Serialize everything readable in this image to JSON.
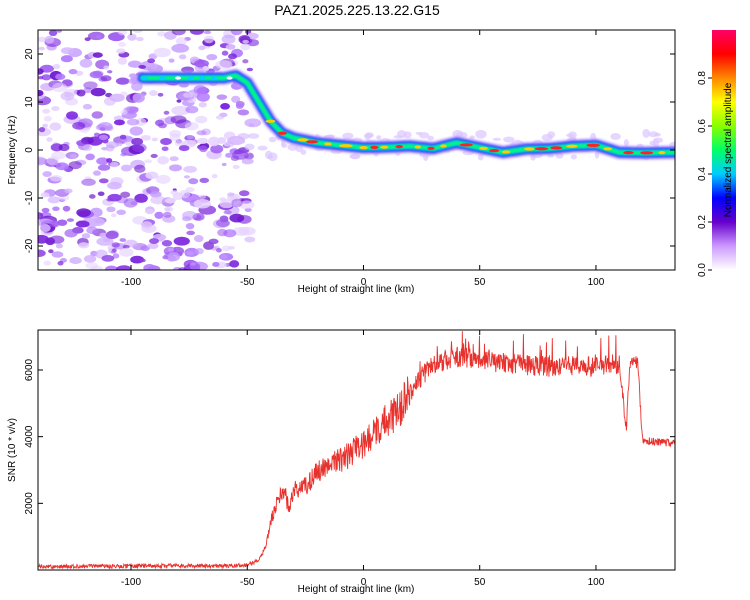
{
  "title": "PAZ1.2025.225.13.22.G15",
  "chart_data": [
    {
      "type": "heatmap",
      "xlabel": "Height of straight line (km)",
      "ylabel": "Frequency (Hz)",
      "xlim": [
        -140,
        134
      ],
      "ylim": [
        -25,
        25
      ],
      "xticks": [
        -100,
        -50,
        0,
        50,
        100
      ],
      "yticks": [
        -20,
        -10,
        0,
        10,
        20
      ],
      "colorbar": {
        "label": "Normalized spectral amplitude",
        "range": [
          0,
          1
        ],
        "ticks": [
          0.0,
          0.2,
          0.4,
          0.6,
          0.8
        ],
        "colors": [
          "#ffffff",
          "#cc99ff",
          "#6600cc",
          "#0000ff",
          "#00ccff",
          "#00ff66",
          "#88ff00",
          "#ffff00",
          "#ff8800",
          "#ff0000",
          "#ff0066"
        ]
      },
      "ridge": {
        "x": [
          -95,
          -60,
          -55,
          -50,
          -45,
          -40,
          -35,
          -30,
          -20,
          -10,
          0,
          10,
          20,
          30,
          40,
          50,
          60,
          70,
          80,
          90,
          100,
          110,
          120,
          134
        ],
        "y": [
          15,
          15,
          15.5,
          14,
          10,
          6,
          3.5,
          2.5,
          1.5,
          1,
          0.5,
          0.6,
          0.8,
          0.3,
          1.5,
          0.5,
          -0.5,
          0.2,
          0.3,
          0.8,
          1,
          -0.5,
          -0.6,
          -0.5
        ]
      },
      "noise_region_x": [
        -140,
        -50
      ]
    },
    {
      "type": "line",
      "xlabel": "Height of straight line (km)",
      "ylabel": "SNR (10 * v/v)",
      "xlim": [
        -140,
        134
      ],
      "ylim": [
        0,
        7200
      ],
      "xticks": [
        -100,
        -50,
        0,
        50,
        100
      ],
      "yticks": [
        2000,
        4000,
        6000
      ],
      "color": "#e8312c",
      "x": [
        -140,
        -120,
        -100,
        -80,
        -60,
        -50,
        -45,
        -42,
        -40,
        -38,
        -36,
        -34,
        -32,
        -30,
        -25,
        -20,
        -15,
        -10,
        -5,
        0,
        5,
        10,
        15,
        20,
        25,
        30,
        35,
        40,
        50,
        60,
        70,
        80,
        90,
        100,
        105,
        110,
        113,
        115,
        118,
        120,
        125,
        134
      ],
      "y": [
        100,
        110,
        120,
        130,
        120,
        150,
        300,
        700,
        1400,
        1900,
        2200,
        2400,
        1800,
        2400,
        2500,
        2900,
        3100,
        3300,
        3500,
        3800,
        4100,
        4500,
        4800,
        5300,
        5800,
        6200,
        6300,
        6400,
        6300,
        6200,
        6150,
        6100,
        6150,
        6100,
        6150,
        6200,
        4300,
        6300,
        6200,
        3900,
        3850,
        3800
      ]
    }
  ]
}
